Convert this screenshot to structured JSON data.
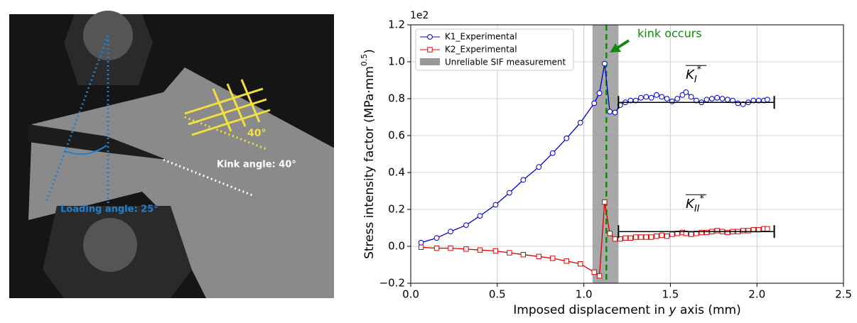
{
  "image_labels": {
    "loading_angle": "Loading angle: 25°",
    "kink_angle": "Kink angle: 40°",
    "angle": "40°"
  },
  "chart_data": {
    "type": "line",
    "offset_text": "1e2",
    "xlabel": [
      "Imposed displacement in ",
      "y",
      " axis (mm)"
    ],
    "ylabel": [
      "Stress intensity factor (MPa·mm",
      "0.5",
      ")"
    ],
    "xlim": [
      0,
      2.5
    ],
    "xticks": [
      {
        "value": 0,
        "label": "0.0"
      },
      0.5,
      {
        "value": 1,
        "label": "1.0"
      },
      1.5,
      {
        "value": 2,
        "label": "2.0"
      },
      2.5
    ],
    "ylim": [
      -0.2,
      1.2
    ],
    "yticks": [
      {
        "value": -0.2,
        "label": "−0.2"
      },
      {
        "value": 0,
        "label": "0.0"
      },
      0.2,
      0.4,
      0.6,
      0.8,
      {
        "value": 1,
        "label": "1.0"
      },
      1.2
    ],
    "grid": true,
    "legend": "upper left",
    "x": [
      0.06,
      0.15,
      0.23,
      0.32,
      0.4,
      0.49,
      0.57,
      0.65,
      0.74,
      0.82,
      0.9,
      0.98,
      1.06,
      1.09,
      1.12,
      1.15,
      1.18,
      1.21,
      1.24,
      1.27,
      1.3,
      1.33,
      1.36,
      1.39,
      1.42,
      1.45,
      1.48,
      1.51,
      1.54,
      1.57,
      1.59,
      1.62,
      1.65,
      1.68,
      1.71,
      1.74,
      1.77,
      1.8,
      1.83,
      1.86,
      1.89,
      1.92,
      1.95,
      1.98,
      2.01,
      2.04,
      2.06
    ],
    "series": [
      {
        "name": "K1_Experimental",
        "color": "#0000cc",
        "marker": "circle",
        "values": [
          0.02,
          0.045,
          0.08,
          0.115,
          0.165,
          0.225,
          0.29,
          0.36,
          0.43,
          0.505,
          0.585,
          0.67,
          0.775,
          0.83,
          0.99,
          0.73,
          0.725,
          0.765,
          0.78,
          0.79,
          0.79,
          0.805,
          0.81,
          0.805,
          0.82,
          0.81,
          0.8,
          0.785,
          0.8,
          0.82,
          0.835,
          0.81,
          0.79,
          0.78,
          0.795,
          0.8,
          0.805,
          0.8,
          0.795,
          0.79,
          0.775,
          0.77,
          0.78,
          0.79,
          0.79,
          0.79,
          0.795
        ]
      },
      {
        "name": "K2_Experimental",
        "color": "#dd0000",
        "marker": "square",
        "values": [
          -0.005,
          -0.01,
          -0.01,
          -0.015,
          -0.02,
          -0.025,
          -0.035,
          -0.045,
          -0.055,
          -0.065,
          -0.08,
          -0.095,
          -0.14,
          -0.16,
          0.24,
          0.07,
          0.04,
          0.04,
          0.045,
          0.045,
          0.05,
          0.05,
          0.05,
          0.05,
          0.055,
          0.06,
          0.055,
          0.065,
          0.07,
          0.075,
          0.07,
          0.065,
          0.07,
          0.075,
          0.075,
          0.08,
          0.085,
          0.08,
          0.075,
          0.08,
          0.08,
          0.085,
          0.085,
          0.09,
          0.09,
          0.095,
          0.095
        ]
      }
    ],
    "span": {
      "name": "Unreliable SIF measurement",
      "x": [
        1.05,
        1.2
      ],
      "color": "#999999"
    },
    "vline": {
      "x": 1.13,
      "color": "#118811",
      "annotation": "kink occurs"
    },
    "mean_lines": [
      {
        "label": [
          "K",
          "I",
          "*"
        ],
        "x": [
          1.2,
          2.1
        ],
        "value": 0.78
      },
      {
        "label": [
          "K",
          "II",
          "*"
        ],
        "x": [
          1.2,
          2.1
        ],
        "value": 0.08
      }
    ]
  }
}
